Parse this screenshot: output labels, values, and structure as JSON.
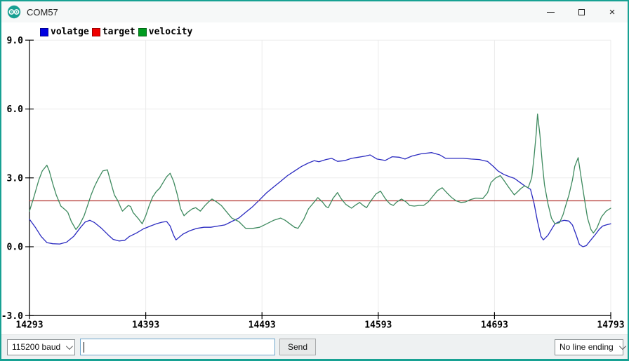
{
  "window": {
    "title": "COM57",
    "controls": {
      "close": "×"
    }
  },
  "chart_data": {
    "type": "line",
    "title": "",
    "xlabel": "",
    "ylabel": "",
    "xlim": [
      14293,
      14793
    ],
    "ylim": [
      -3.0,
      9.0
    ],
    "grid": true,
    "legend_position": "top-left",
    "x_ticks": [
      14293,
      14393,
      14493,
      14593,
      14693,
      14793
    ],
    "y_ticks": [
      {
        "v": 9.0,
        "label": "9.0"
      },
      {
        "v": 6.0,
        "label": "6.0"
      },
      {
        "v": 3.0,
        "label": "3.0"
      },
      {
        "v": 0.0,
        "label": "0.0"
      },
      {
        "v": -3.0,
        "label": "-3.0"
      }
    ],
    "series": [
      {
        "name": "volatge",
        "legend_color": "#0000e0",
        "color": "#2a2ac0",
        "points": [
          [
            14293,
            1.2
          ],
          [
            14298,
            0.85
          ],
          [
            14303,
            0.45
          ],
          [
            14308,
            0.18
          ],
          [
            14313,
            0.13
          ],
          [
            14319,
            0.12
          ],
          [
            14325,
            0.2
          ],
          [
            14331,
            0.45
          ],
          [
            14337,
            0.85
          ],
          [
            14341,
            1.08
          ],
          [
            14345,
            1.15
          ],
          [
            14349,
            1.05
          ],
          [
            14355,
            0.8
          ],
          [
            14361,
            0.5
          ],
          [
            14365,
            0.32
          ],
          [
            14370,
            0.25
          ],
          [
            14375,
            0.28
          ],
          [
            14379,
            0.45
          ],
          [
            14385,
            0.6
          ],
          [
            14391,
            0.78
          ],
          [
            14397,
            0.9
          ],
          [
            14402,
            1.0
          ],
          [
            14407,
            1.07
          ],
          [
            14411,
            1.1
          ],
          [
            14414,
            0.9
          ],
          [
            14417,
            0.5
          ],
          [
            14419,
            0.3
          ],
          [
            14425,
            0.55
          ],
          [
            14431,
            0.7
          ],
          [
            14437,
            0.8
          ],
          [
            14443,
            0.85
          ],
          [
            14449,
            0.85
          ],
          [
            14455,
            0.9
          ],
          [
            14461,
            0.95
          ],
          [
            14467,
            1.1
          ],
          [
            14473,
            1.25
          ],
          [
            14479,
            1.5
          ],
          [
            14485,
            1.75
          ],
          [
            14491,
            2.05
          ],
          [
            14497,
            2.35
          ],
          [
            14503,
            2.6
          ],
          [
            14509,
            2.85
          ],
          [
            14515,
            3.1
          ],
          [
            14521,
            3.3
          ],
          [
            14527,
            3.5
          ],
          [
            14533,
            3.65
          ],
          [
            14538,
            3.75
          ],
          [
            14542,
            3.7
          ],
          [
            14548,
            3.8
          ],
          [
            14553,
            3.85
          ],
          [
            14558,
            3.72
          ],
          [
            14564,
            3.75
          ],
          [
            14570,
            3.85
          ],
          [
            14576,
            3.9
          ],
          [
            14582,
            3.95
          ],
          [
            14586,
            4.0
          ],
          [
            14592,
            3.82
          ],
          [
            14599,
            3.76
          ],
          [
            14605,
            3.92
          ],
          [
            14611,
            3.9
          ],
          [
            14616,
            3.82
          ],
          [
            14622,
            3.95
          ],
          [
            14630,
            4.05
          ],
          [
            14639,
            4.1
          ],
          [
            14646,
            4.0
          ],
          [
            14651,
            3.85
          ],
          [
            14657,
            3.85
          ],
          [
            14666,
            3.85
          ],
          [
            14673,
            3.82
          ],
          [
            14680,
            3.8
          ],
          [
            14684,
            3.75
          ],
          [
            14687,
            3.72
          ],
          [
            14692,
            3.5
          ],
          [
            14696,
            3.3
          ],
          [
            14701,
            3.15
          ],
          [
            14706,
            3.05
          ],
          [
            14710,
            2.98
          ],
          [
            14715,
            2.8
          ],
          [
            14719,
            2.65
          ],
          [
            14724,
            2.5
          ],
          [
            14727,
            1.9
          ],
          [
            14730,
            1.1
          ],
          [
            14733,
            0.45
          ],
          [
            14735,
            0.3
          ],
          [
            14739,
            0.5
          ],
          [
            14742,
            0.75
          ],
          [
            14745,
            1.0
          ],
          [
            14749,
            1.1
          ],
          [
            14753,
            1.15
          ],
          [
            14757,
            1.12
          ],
          [
            14760,
            0.95
          ],
          [
            14763,
            0.55
          ],
          [
            14766,
            0.1
          ],
          [
            14769,
            0.0
          ],
          [
            14772,
            0.05
          ],
          [
            14776,
            0.3
          ],
          [
            14780,
            0.55
          ],
          [
            14783,
            0.75
          ],
          [
            14786,
            0.9
          ],
          [
            14789,
            0.95
          ],
          [
            14793,
            1.0
          ]
        ]
      },
      {
        "name": "target",
        "legend_color": "#f00000",
        "color": "#b23430",
        "points": [
          [
            14293,
            2.0
          ],
          [
            14793,
            2.0
          ]
        ]
      },
      {
        "name": "velocity",
        "legend_color": "#009c20",
        "color": "#3e8a5f",
        "points": [
          [
            14293,
            1.55
          ],
          [
            14297,
            2.2
          ],
          [
            14301,
            2.9
          ],
          [
            14304,
            3.3
          ],
          [
            14308,
            3.55
          ],
          [
            14310,
            3.3
          ],
          [
            14313,
            2.75
          ],
          [
            14316,
            2.26
          ],
          [
            14320,
            1.77
          ],
          [
            14324,
            1.6
          ],
          [
            14326,
            1.5
          ],
          [
            14329,
            1.1
          ],
          [
            14333,
            0.75
          ],
          [
            14336,
            0.95
          ],
          [
            14340,
            1.35
          ],
          [
            14343,
            1.8
          ],
          [
            14346,
            2.26
          ],
          [
            14349,
            2.63
          ],
          [
            14352,
            2.94
          ],
          [
            14356,
            3.3
          ],
          [
            14360,
            3.35
          ],
          [
            14363,
            2.8
          ],
          [
            14366,
            2.26
          ],
          [
            14369,
            2.0
          ],
          [
            14372,
            1.65
          ],
          [
            14373,
            1.55
          ],
          [
            14376,
            1.7
          ],
          [
            14378,
            1.8
          ],
          [
            14380,
            1.75
          ],
          [
            14382,
            1.5
          ],
          [
            14387,
            1.2
          ],
          [
            14390,
            1.0
          ],
          [
            14393,
            1.35
          ],
          [
            14396,
            1.8
          ],
          [
            14399,
            2.17
          ],
          [
            14402,
            2.4
          ],
          [
            14405,
            2.55
          ],
          [
            14408,
            2.8
          ],
          [
            14411,
            3.05
          ],
          [
            14414,
            3.2
          ],
          [
            14417,
            2.85
          ],
          [
            14420,
            2.3
          ],
          [
            14423,
            1.65
          ],
          [
            14426,
            1.35
          ],
          [
            14429,
            1.5
          ],
          [
            14433,
            1.65
          ],
          [
            14436,
            1.7
          ],
          [
            14440,
            1.55
          ],
          [
            14444,
            1.8
          ],
          [
            14448,
            2.0
          ],
          [
            14450,
            2.08
          ],
          [
            14454,
            1.95
          ],
          [
            14458,
            1.8
          ],
          [
            14462,
            1.55
          ],
          [
            14467,
            1.25
          ],
          [
            14473,
            1.1
          ],
          [
            14479,
            0.8
          ],
          [
            14485,
            0.8
          ],
          [
            14491,
            0.85
          ],
          [
            14497,
            1.0
          ],
          [
            14503,
            1.15
          ],
          [
            14509,
            1.25
          ],
          [
            14513,
            1.15
          ],
          [
            14517,
            1.0
          ],
          [
            14521,
            0.85
          ],
          [
            14524,
            0.8
          ],
          [
            14529,
            1.2
          ],
          [
            14533,
            1.65
          ],
          [
            14538,
            1.95
          ],
          [
            14541,
            2.14
          ],
          [
            14545,
            1.95
          ],
          [
            14548,
            1.75
          ],
          [
            14550,
            1.7
          ],
          [
            14554,
            2.1
          ],
          [
            14558,
            2.36
          ],
          [
            14561,
            2.1
          ],
          [
            14565,
            1.85
          ],
          [
            14570,
            1.68
          ],
          [
            14573,
            1.8
          ],
          [
            14577,
            1.93
          ],
          [
            14580,
            1.8
          ],
          [
            14583,
            1.7
          ],
          [
            14586,
            1.95
          ],
          [
            14591,
            2.3
          ],
          [
            14595,
            2.42
          ],
          [
            14599,
            2.1
          ],
          [
            14603,
            1.87
          ],
          [
            14606,
            1.8
          ],
          [
            14609,
            1.95
          ],
          [
            14613,
            2.08
          ],
          [
            14617,
            1.95
          ],
          [
            14620,
            1.8
          ],
          [
            14624,
            1.77
          ],
          [
            14628,
            1.8
          ],
          [
            14632,
            1.8
          ],
          [
            14636,
            1.95
          ],
          [
            14640,
            2.2
          ],
          [
            14644,
            2.45
          ],
          [
            14648,
            2.57
          ],
          [
            14652,
            2.35
          ],
          [
            14656,
            2.15
          ],
          [
            14660,
            2.0
          ],
          [
            14664,
            1.93
          ],
          [
            14668,
            1.95
          ],
          [
            14672,
            2.05
          ],
          [
            14677,
            2.12
          ],
          [
            14683,
            2.1
          ],
          [
            14687,
            2.35
          ],
          [
            14690,
            2.8
          ],
          [
            14694,
            3.0
          ],
          [
            14698,
            3.1
          ],
          [
            14701,
            2.9
          ],
          [
            14705,
            2.6
          ],
          [
            14708,
            2.4
          ],
          [
            14710,
            2.26
          ],
          [
            14713,
            2.4
          ],
          [
            14716,
            2.55
          ],
          [
            14719,
            2.65
          ],
          [
            14722,
            2.57
          ],
          [
            14725,
            3.0
          ],
          [
            14727,
            3.9
          ],
          [
            14729,
            5.0
          ],
          [
            14730,
            5.78
          ],
          [
            14732,
            4.9
          ],
          [
            14734,
            3.7
          ],
          [
            14736,
            2.7
          ],
          [
            14739,
            1.87
          ],
          [
            14742,
            1.25
          ],
          [
            14745,
            1.0
          ],
          [
            14749,
            1.05
          ],
          [
            14752,
            1.4
          ],
          [
            14754,
            1.75
          ],
          [
            14757,
            2.25
          ],
          [
            14760,
            2.9
          ],
          [
            14762,
            3.5
          ],
          [
            14765,
            3.88
          ],
          [
            14767,
            3.2
          ],
          [
            14770,
            2.2
          ],
          [
            14773,
            1.25
          ],
          [
            14776,
            0.75
          ],
          [
            14778,
            0.6
          ],
          [
            14781,
            0.8
          ],
          [
            14785,
            1.3
          ],
          [
            14789,
            1.55
          ],
          [
            14793,
            1.68
          ]
        ]
      }
    ]
  },
  "bottom_bar": {
    "baud_select": "115200 baud",
    "message_input_value": "",
    "message_input_placeholder": "",
    "send_button": "Send",
    "line_ending_select": "No line ending"
  }
}
